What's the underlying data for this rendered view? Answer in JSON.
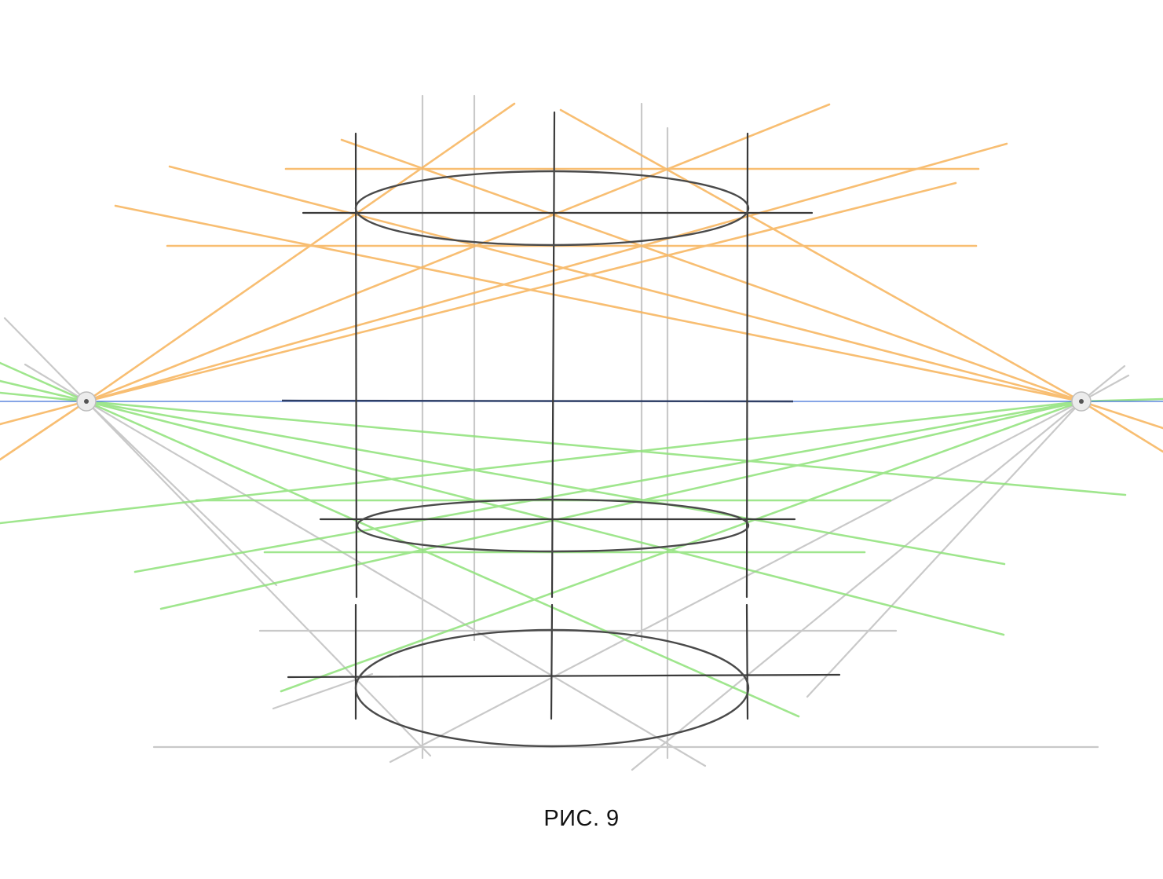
{
  "figure": {
    "caption": "РИС. 9"
  },
  "colors": {
    "orange_guides": "#f7b35a",
    "green_guides": "#8fe27a",
    "gray_guides": "#c9c9c9",
    "dark_lines": "#3a3a3a",
    "horizon_line": "#3d6fd8",
    "horizon_segment": "#2f3f66",
    "background": "#ffffff"
  }
}
